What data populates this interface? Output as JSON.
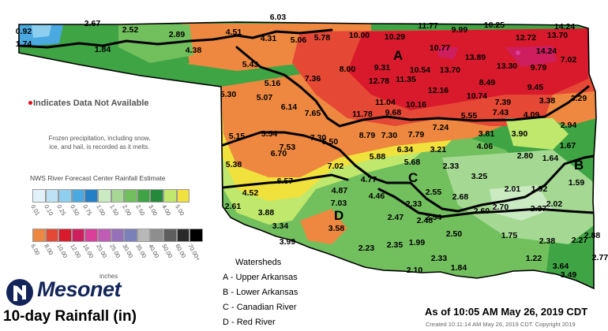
{
  "title": "10-day Rainfall (in)",
  "brand": "Mesonet",
  "as_of": "As of 10:05 AM May 26, 2019 CDT",
  "created": "Created 10:11:14 AM May 26, 2019 CDT. Copyright 2019",
  "na_note": "Indicates Data Not Available",
  "frozen_note": "Frozen precipitation, including snow, ice, and hail, is recorded as it melts.",
  "legend": {
    "title": "NWS River Forecast Center Rainfall Estimate",
    "units": "inches",
    "row1": [
      {
        "label": "0.01",
        "color": "#e2f2fb"
      },
      {
        "label": "0.10",
        "color": "#bee2f5"
      },
      {
        "label": "0.25",
        "color": "#8ecff0"
      },
      {
        "label": "0.50",
        "color": "#4aa9e0"
      },
      {
        "label": "0.75",
        "color": "#2480c6"
      },
      {
        "label": "1.00",
        "color": "#caeac2"
      },
      {
        "label": "1.50",
        "color": "#a5d993"
      },
      {
        "label": "2.00",
        "color": "#72bf5e"
      },
      {
        "label": "2.50",
        "color": "#3fa444"
      },
      {
        "label": "3.00",
        "color": "#248a3a"
      },
      {
        "label": "4.00",
        "color": "#bfe86c"
      },
      {
        "label": "5.00",
        "color": "#f1e13c"
      }
    ],
    "row2": [
      {
        "label": "6.00",
        "color": "#ee8840"
      },
      {
        "label": "8.00",
        "color": "#e54835"
      },
      {
        "label": "10.00",
        "color": "#d91a2c"
      },
      {
        "label": "12.00",
        "color": "#ce1e5e"
      },
      {
        "label": "16.00",
        "color": "#da3f9a"
      },
      {
        "label": "20.00",
        "color": "#c05cb5"
      },
      {
        "label": "25.00",
        "color": "#9670b8"
      },
      {
        "label": "30.00",
        "color": "#7a80ba"
      },
      {
        "label": "35.00",
        "color": "#b8b8b8"
      },
      {
        "label": "40.00",
        "color": "#8e8e8e"
      },
      {
        "label": "50.00",
        "color": "#5e5e5e"
      },
      {
        "label": "60.00",
        "color": "#2a2a2a"
      },
      {
        "label": "70.00+",
        "color": "#000000"
      }
    ]
  },
  "watersheds": {
    "title": "Watersheds",
    "items": [
      {
        "code": "A",
        "label": "A - Upper Arkansas"
      },
      {
        "code": "B",
        "label": "B - Lower Arkansas"
      },
      {
        "code": "C",
        "label": "C - Canadian River"
      },
      {
        "code": "D",
        "label": "D - Red River"
      }
    ]
  },
  "stations": [
    {
      "v": "0.92"
    },
    {
      "v": "1.74"
    },
    {
      "v": "2.67"
    },
    {
      "v": "2.52"
    },
    {
      "v": "1.84"
    },
    {
      "v": "2.89"
    },
    {
      "v": "4.38"
    },
    {
      "v": "6.03"
    },
    {
      "v": "4.51"
    },
    {
      "v": "4.31"
    },
    {
      "v": "5.06"
    },
    {
      "v": "5.78"
    },
    {
      "v": "10.00"
    },
    {
      "v": "10.29"
    },
    {
      "v": "11.77"
    },
    {
      "v": "9.99"
    },
    {
      "v": "10.25"
    },
    {
      "v": "14.24"
    },
    {
      "v": "12.72"
    },
    {
      "v": "13.70"
    },
    {
      "v": "10.77"
    },
    {
      "v": "13.89"
    },
    {
      "v": "13.30"
    },
    {
      "v": "14.24"
    },
    {
      "v": "7.02"
    },
    {
      "v": "5.43"
    },
    {
      "v": "8.00"
    },
    {
      "v": "9.31"
    },
    {
      "v": "10.54"
    },
    {
      "v": "13.70"
    },
    {
      "v": "9.79"
    },
    {
      "v": "5.16"
    },
    {
      "v": "7.36"
    },
    {
      "v": "12.78"
    },
    {
      "v": "11.35"
    },
    {
      "v": "12.16"
    },
    {
      "v": "8.49"
    },
    {
      "v": "5.30"
    },
    {
      "v": "5.07"
    },
    {
      "v": "11.04"
    },
    {
      "v": "10.16"
    },
    {
      "v": "10.74"
    },
    {
      "v": "9.45"
    },
    {
      "v": "6.14"
    },
    {
      "v": "7.65"
    },
    {
      "v": "11.78"
    },
    {
      "v": "9.68"
    },
    {
      "v": "7.39"
    },
    {
      "v": "3.38"
    },
    {
      "v": "3.29"
    },
    {
      "v": "5.55"
    },
    {
      "v": "7.43"
    },
    {
      "v": "4.09"
    },
    {
      "v": "5.54"
    },
    {
      "v": "7.24"
    },
    {
      "v": "5.15"
    },
    {
      "v": "7.53"
    },
    {
      "v": "7.30"
    },
    {
      "v": "5.50"
    },
    {
      "v": "8.79"
    },
    {
      "v": "7.30"
    },
    {
      "v": "7.79"
    },
    {
      "v": "3.81"
    },
    {
      "v": "3.90"
    },
    {
      "v": "2.94"
    },
    {
      "v": "6.70"
    },
    {
      "v": "6.34"
    },
    {
      "v": "3.21"
    },
    {
      "v": "4.06"
    },
    {
      "v": "1.67"
    },
    {
      "v": "5.88"
    },
    {
      "v": "5.68"
    },
    {
      "v": "2.80"
    },
    {
      "v": "1.64"
    },
    {
      "v": "5.38"
    },
    {
      "v": "2.33"
    },
    {
      "v": "3.25"
    },
    {
      "v": "7.02"
    },
    {
      "v": "4.77"
    },
    {
      "v": "6.57"
    },
    {
      "v": "1.59"
    },
    {
      "v": "2.01"
    },
    {
      "v": "1.92"
    },
    {
      "v": "4.87"
    },
    {
      "v": "4.52"
    },
    {
      "v": "4.46"
    },
    {
      "v": "2.55"
    },
    {
      "v": "2.68"
    },
    {
      "v": "2.61"
    },
    {
      "v": "7.03"
    },
    {
      "v": "2.33"
    },
    {
      "v": "2.70"
    },
    {
      "v": "2.37"
    },
    {
      "v": "2.02"
    },
    {
      "v": "3.88"
    },
    {
      "v": "2.47"
    },
    {
      "v": "2.54"
    },
    {
      "v": "2.60"
    },
    {
      "v": "3.34"
    },
    {
      "v": "3.58"
    },
    {
      "v": "2.48"
    },
    {
      "v": "2.50"
    },
    {
      "v": "1.75"
    },
    {
      "v": "2.38"
    },
    {
      "v": "2.27"
    },
    {
      "v": "2.88"
    },
    {
      "v": "3.99"
    },
    {
      "v": "2.23"
    },
    {
      "v": "2.35"
    },
    {
      "v": "1.99"
    },
    {
      "v": "2.33"
    },
    {
      "v": "1.22"
    },
    {
      "v": "2.77"
    },
    {
      "v": "2.10"
    },
    {
      "v": "1.84"
    },
    {
      "v": "3.64"
    },
    {
      "v": "3.49"
    }
  ]
}
